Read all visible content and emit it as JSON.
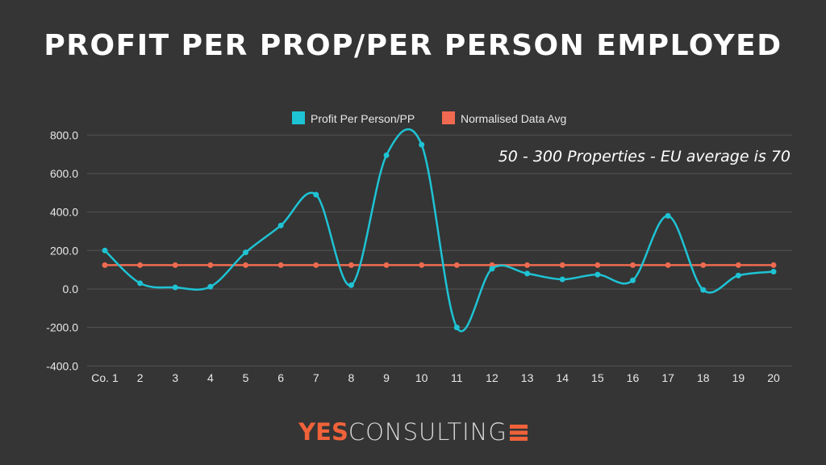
{
  "title": "PROFIT PER PROP/PER PERSON EMPLOYED",
  "logo": {
    "bold": "YES",
    "light": "CONSULTING"
  },
  "chart_data": {
    "type": "line",
    "title": "PROFIT PER PROP/PER PERSON EMPLOYED",
    "annotation": "50 - 300 Properties - EU average is 70",
    "categories": [
      "Co. 1",
      "2",
      "3",
      "4",
      "5",
      "6",
      "7",
      "8",
      "9",
      "10",
      "11",
      "12",
      "13",
      "14",
      "15",
      "16",
      "17",
      "18",
      "19",
      "20"
    ],
    "series": [
      {
        "name": "Profit Per Person/PP",
        "color": "#1ec3d4",
        "smooth": true,
        "values": [
          200,
          30,
          8,
          12,
          190,
          330,
          490,
          20,
          695,
          750,
          -200,
          105,
          80,
          50,
          75,
          45,
          380,
          -5,
          70,
          90
        ]
      },
      {
        "name": "Normalised Data Avg",
        "color": "#ef6a50",
        "smooth": false,
        "values": [
          124,
          124,
          124,
          124,
          124,
          124,
          124,
          124,
          124,
          124,
          124,
          124,
          124,
          124,
          124,
          124,
          124,
          124,
          124,
          124
        ]
      }
    ],
    "yticks": [
      "800.0",
      "600.0",
      "400.0",
      "200.0",
      "0.0",
      "-200.0",
      "-400.0"
    ],
    "ytick_values": [
      800,
      600,
      400,
      200,
      0,
      -200,
      -400
    ],
    "ylim": [
      -400,
      800
    ],
    "grid": true,
    "legend": "top-center",
    "xlabel": "",
    "ylabel": ""
  }
}
